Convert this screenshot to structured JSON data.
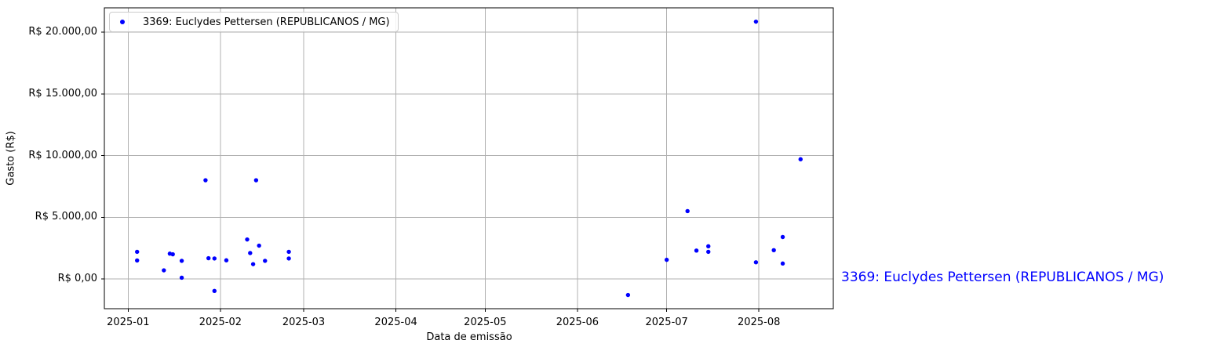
{
  "figure": {
    "background": "#ffffff"
  },
  "annotation": {
    "text": "3369: Euclydes Pettersen (REPUBLICANOS / MG)",
    "color": "#0000ff"
  },
  "chart_data": {
    "type": "scatter",
    "title": "",
    "xlabel": "Data de emissão",
    "ylabel": "Gasto (R$)",
    "grid": true,
    "grid_color": "#b0b0b0",
    "frame_color": "#000000",
    "legend_position": "upper left",
    "xlim": [
      "2024-12-24",
      "2025-08-26"
    ],
    "ylim": [
      -2410,
      21970
    ],
    "x_ticks": [
      {
        "date": "2025-01-01",
        "label": "2025-01"
      },
      {
        "date": "2025-02-01",
        "label": "2025-02"
      },
      {
        "date": "2025-03-01",
        "label": "2025-03"
      },
      {
        "date": "2025-04-01",
        "label": "2025-04"
      },
      {
        "date": "2025-05-01",
        "label": "2025-05"
      },
      {
        "date": "2025-06-01",
        "label": "2025-06"
      },
      {
        "date": "2025-07-01",
        "label": "2025-07"
      },
      {
        "date": "2025-08-01",
        "label": "2025-08"
      }
    ],
    "y_ticks": [
      {
        "value": 0,
        "label": "R$ 0,00"
      },
      {
        "value": 5000,
        "label": "R$ 5.000,00"
      },
      {
        "value": 10000,
        "label": "R$ 10.000,00"
      },
      {
        "value": 15000,
        "label": "R$ 15.000,00"
      },
      {
        "value": 20000,
        "label": "R$ 20.000,00"
      }
    ],
    "series": [
      {
        "name": "3369: Euclydes Pettersen (REPUBLICANOS / MG)",
        "color": "#0000ff",
        "marker": "circle",
        "points": [
          {
            "date": "2025-01-04",
            "value": 2200
          },
          {
            "date": "2025-01-04",
            "value": 1500
          },
          {
            "date": "2025-01-13",
            "value": 700
          },
          {
            "date": "2025-01-15",
            "value": 2050
          },
          {
            "date": "2025-01-16",
            "value": 2000
          },
          {
            "date": "2025-01-19",
            "value": 1470
          },
          {
            "date": "2025-01-19",
            "value": 100
          },
          {
            "date": "2025-01-27",
            "value": 8000
          },
          {
            "date": "2025-01-28",
            "value": 1680
          },
          {
            "date": "2025-01-30",
            "value": 1660
          },
          {
            "date": "2025-01-30",
            "value": -970
          },
          {
            "date": "2025-02-03",
            "value": 1510
          },
          {
            "date": "2025-02-10",
            "value": 3200
          },
          {
            "date": "2025-02-11",
            "value": 2100
          },
          {
            "date": "2025-02-12",
            "value": 1200
          },
          {
            "date": "2025-02-13",
            "value": 8000
          },
          {
            "date": "2025-02-14",
            "value": 2700
          },
          {
            "date": "2025-02-16",
            "value": 1470
          },
          {
            "date": "2025-02-24",
            "value": 2200
          },
          {
            "date": "2025-02-24",
            "value": 1660
          },
          {
            "date": "2025-06-18",
            "value": -1300
          },
          {
            "date": "2025-07-01",
            "value": 1550
          },
          {
            "date": "2025-07-08",
            "value": 5500
          },
          {
            "date": "2025-07-11",
            "value": 2300
          },
          {
            "date": "2025-07-15",
            "value": 2650
          },
          {
            "date": "2025-07-15",
            "value": 2200
          },
          {
            "date": "2025-07-31",
            "value": 20850
          },
          {
            "date": "2025-07-31",
            "value": 1350
          },
          {
            "date": "2025-08-06",
            "value": 2330
          },
          {
            "date": "2025-08-09",
            "value": 3400
          },
          {
            "date": "2025-08-09",
            "value": 1250
          },
          {
            "date": "2025-08-15",
            "value": 9700
          }
        ]
      }
    ]
  }
}
